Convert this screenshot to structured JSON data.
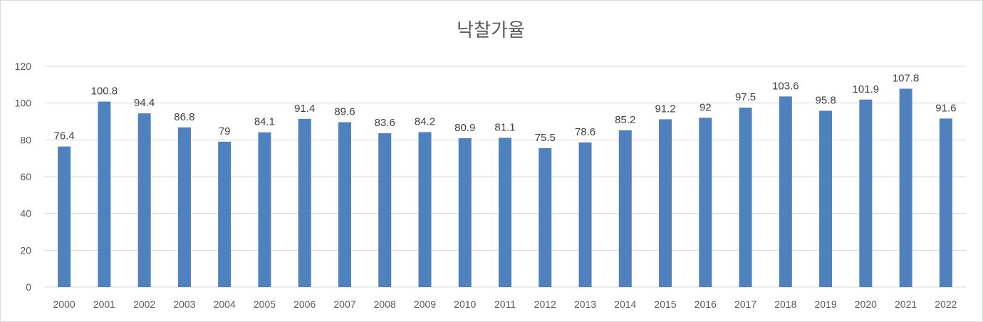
{
  "chart_data": {
    "type": "bar",
    "title": "낙찰가율",
    "xlabel": "",
    "ylabel": "",
    "categories": [
      "2000",
      "2001",
      "2002",
      "2003",
      "2004",
      "2005",
      "2006",
      "2007",
      "2008",
      "2009",
      "2010",
      "2011",
      "2012",
      "2013",
      "2014",
      "2015",
      "2016",
      "2017",
      "2018",
      "2019",
      "2020",
      "2021",
      "2022"
    ],
    "values": [
      76.4,
      100.8,
      94.4,
      86.8,
      79,
      84.1,
      91.4,
      89.6,
      83.6,
      84.2,
      80.9,
      81.1,
      75.5,
      78.6,
      85.2,
      91.2,
      92,
      97.5,
      103.6,
      95.8,
      101.9,
      107.8,
      91.6
    ],
    "value_labels": [
      "76.4",
      "100.8",
      "94.4",
      "86.8",
      "79",
      "84.1",
      "91.4",
      "89.6",
      "83.6",
      "84.2",
      "80.9",
      "81.1",
      "75.5",
      "78.6",
      "85.2",
      "91.2",
      "92",
      "97.5",
      "103.6",
      "95.8",
      "101.9",
      "107.8",
      "91.6"
    ],
    "y_ticks": [
      "0",
      "20",
      "40",
      "60",
      "80",
      "100",
      "120"
    ],
    "ylim": [
      0,
      120
    ],
    "grid": true,
    "legend": "none",
    "bar_color": "#4e81bd",
    "grid_color": "#d9d9d9"
  }
}
